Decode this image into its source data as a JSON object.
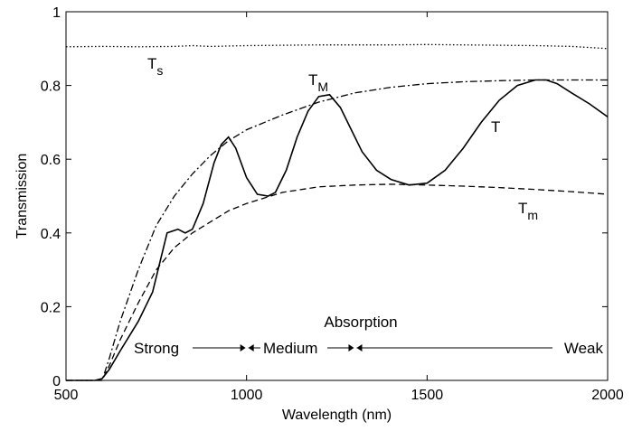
{
  "chart_data": {
    "type": "line",
    "xlabel": "Wavelength (nm)",
    "ylabel": "Transmission",
    "xlim": [
      500,
      2000
    ],
    "ylim": [
      0,
      1
    ],
    "xticks": [
      "500",
      "1000",
      "1500",
      "2000"
    ],
    "yticks": [
      "0",
      "0.2",
      "0.4",
      "0.6",
      "0.8",
      "1"
    ],
    "grid": false,
    "series": [
      {
        "name": "T_s",
        "label_main": "T",
        "label_sub": "s",
        "style": "dotted",
        "x": [
          500,
          600,
          700,
          800,
          850,
          900,
          1000,
          1100,
          1200,
          1300,
          1400,
          1500,
          1600,
          1700,
          1800,
          1900,
          2000
        ],
        "y": [
          0.905,
          0.906,
          0.905,
          0.906,
          0.908,
          0.906,
          0.908,
          0.909,
          0.91,
          0.91,
          0.91,
          0.911,
          0.91,
          0.909,
          0.908,
          0.906,
          0.9
        ]
      },
      {
        "name": "T_M",
        "label_main": "T",
        "label_sub": "M",
        "style": "dashdot",
        "x": [
          500,
          550,
          600,
          620,
          650,
          700,
          750,
          800,
          850,
          900,
          950,
          1000,
          1100,
          1200,
          1300,
          1400,
          1500,
          1600,
          1700,
          1800,
          1900,
          2000
        ],
        "y": [
          0,
          0,
          0.0,
          0.06,
          0.16,
          0.3,
          0.42,
          0.5,
          0.56,
          0.61,
          0.65,
          0.68,
          0.72,
          0.755,
          0.78,
          0.795,
          0.805,
          0.81,
          0.813,
          0.815,
          0.815,
          0.815
        ]
      },
      {
        "name": "T",
        "label_main": "T",
        "label_sub": "",
        "style": "solid",
        "x": [
          500,
          550,
          580,
          600,
          620,
          650,
          700,
          740,
          780,
          810,
          830,
          850,
          880,
          910,
          930,
          950,
          970,
          1000,
          1030,
          1060,
          1080,
          1110,
          1140,
          1170,
          1200,
          1230,
          1260,
          1290,
          1320,
          1360,
          1400,
          1450,
          1500,
          1550,
          1600,
          1650,
          1700,
          1750,
          1800,
          1830,
          1860,
          1900,
          1950,
          2000
        ],
        "y": [
          0,
          0,
          0.0,
          0.005,
          0.03,
          0.08,
          0.16,
          0.24,
          0.4,
          0.41,
          0.4,
          0.41,
          0.48,
          0.59,
          0.64,
          0.66,
          0.63,
          0.55,
          0.505,
          0.5,
          0.51,
          0.57,
          0.66,
          0.73,
          0.77,
          0.775,
          0.74,
          0.68,
          0.62,
          0.57,
          0.545,
          0.53,
          0.535,
          0.57,
          0.63,
          0.7,
          0.76,
          0.8,
          0.815,
          0.815,
          0.805,
          0.78,
          0.75,
          0.715
        ]
      },
      {
        "name": "T_m",
        "label_main": "T",
        "label_sub": "m",
        "style": "dashed",
        "x": [
          500,
          550,
          600,
          620,
          650,
          700,
          750,
          800,
          850,
          900,
          950,
          1000,
          1100,
          1200,
          1300,
          1400,
          1500,
          1600,
          1700,
          1800,
          1900,
          2000
        ],
        "y": [
          0,
          0,
          0.0,
          0.04,
          0.11,
          0.21,
          0.3,
          0.36,
          0.4,
          0.43,
          0.46,
          0.48,
          0.51,
          0.525,
          0.53,
          0.532,
          0.53,
          0.527,
          0.523,
          0.518,
          0.512,
          0.505
        ]
      }
    ],
    "annotation": {
      "title": "Absorption",
      "zones": [
        {
          "label": "Strong",
          "from": 695,
          "to": 1000
        },
        {
          "label": "Medium",
          "from": 1000,
          "to": 1300
        },
        {
          "label": "Weak",
          "from": 1300,
          "to": 1860
        }
      ]
    }
  }
}
